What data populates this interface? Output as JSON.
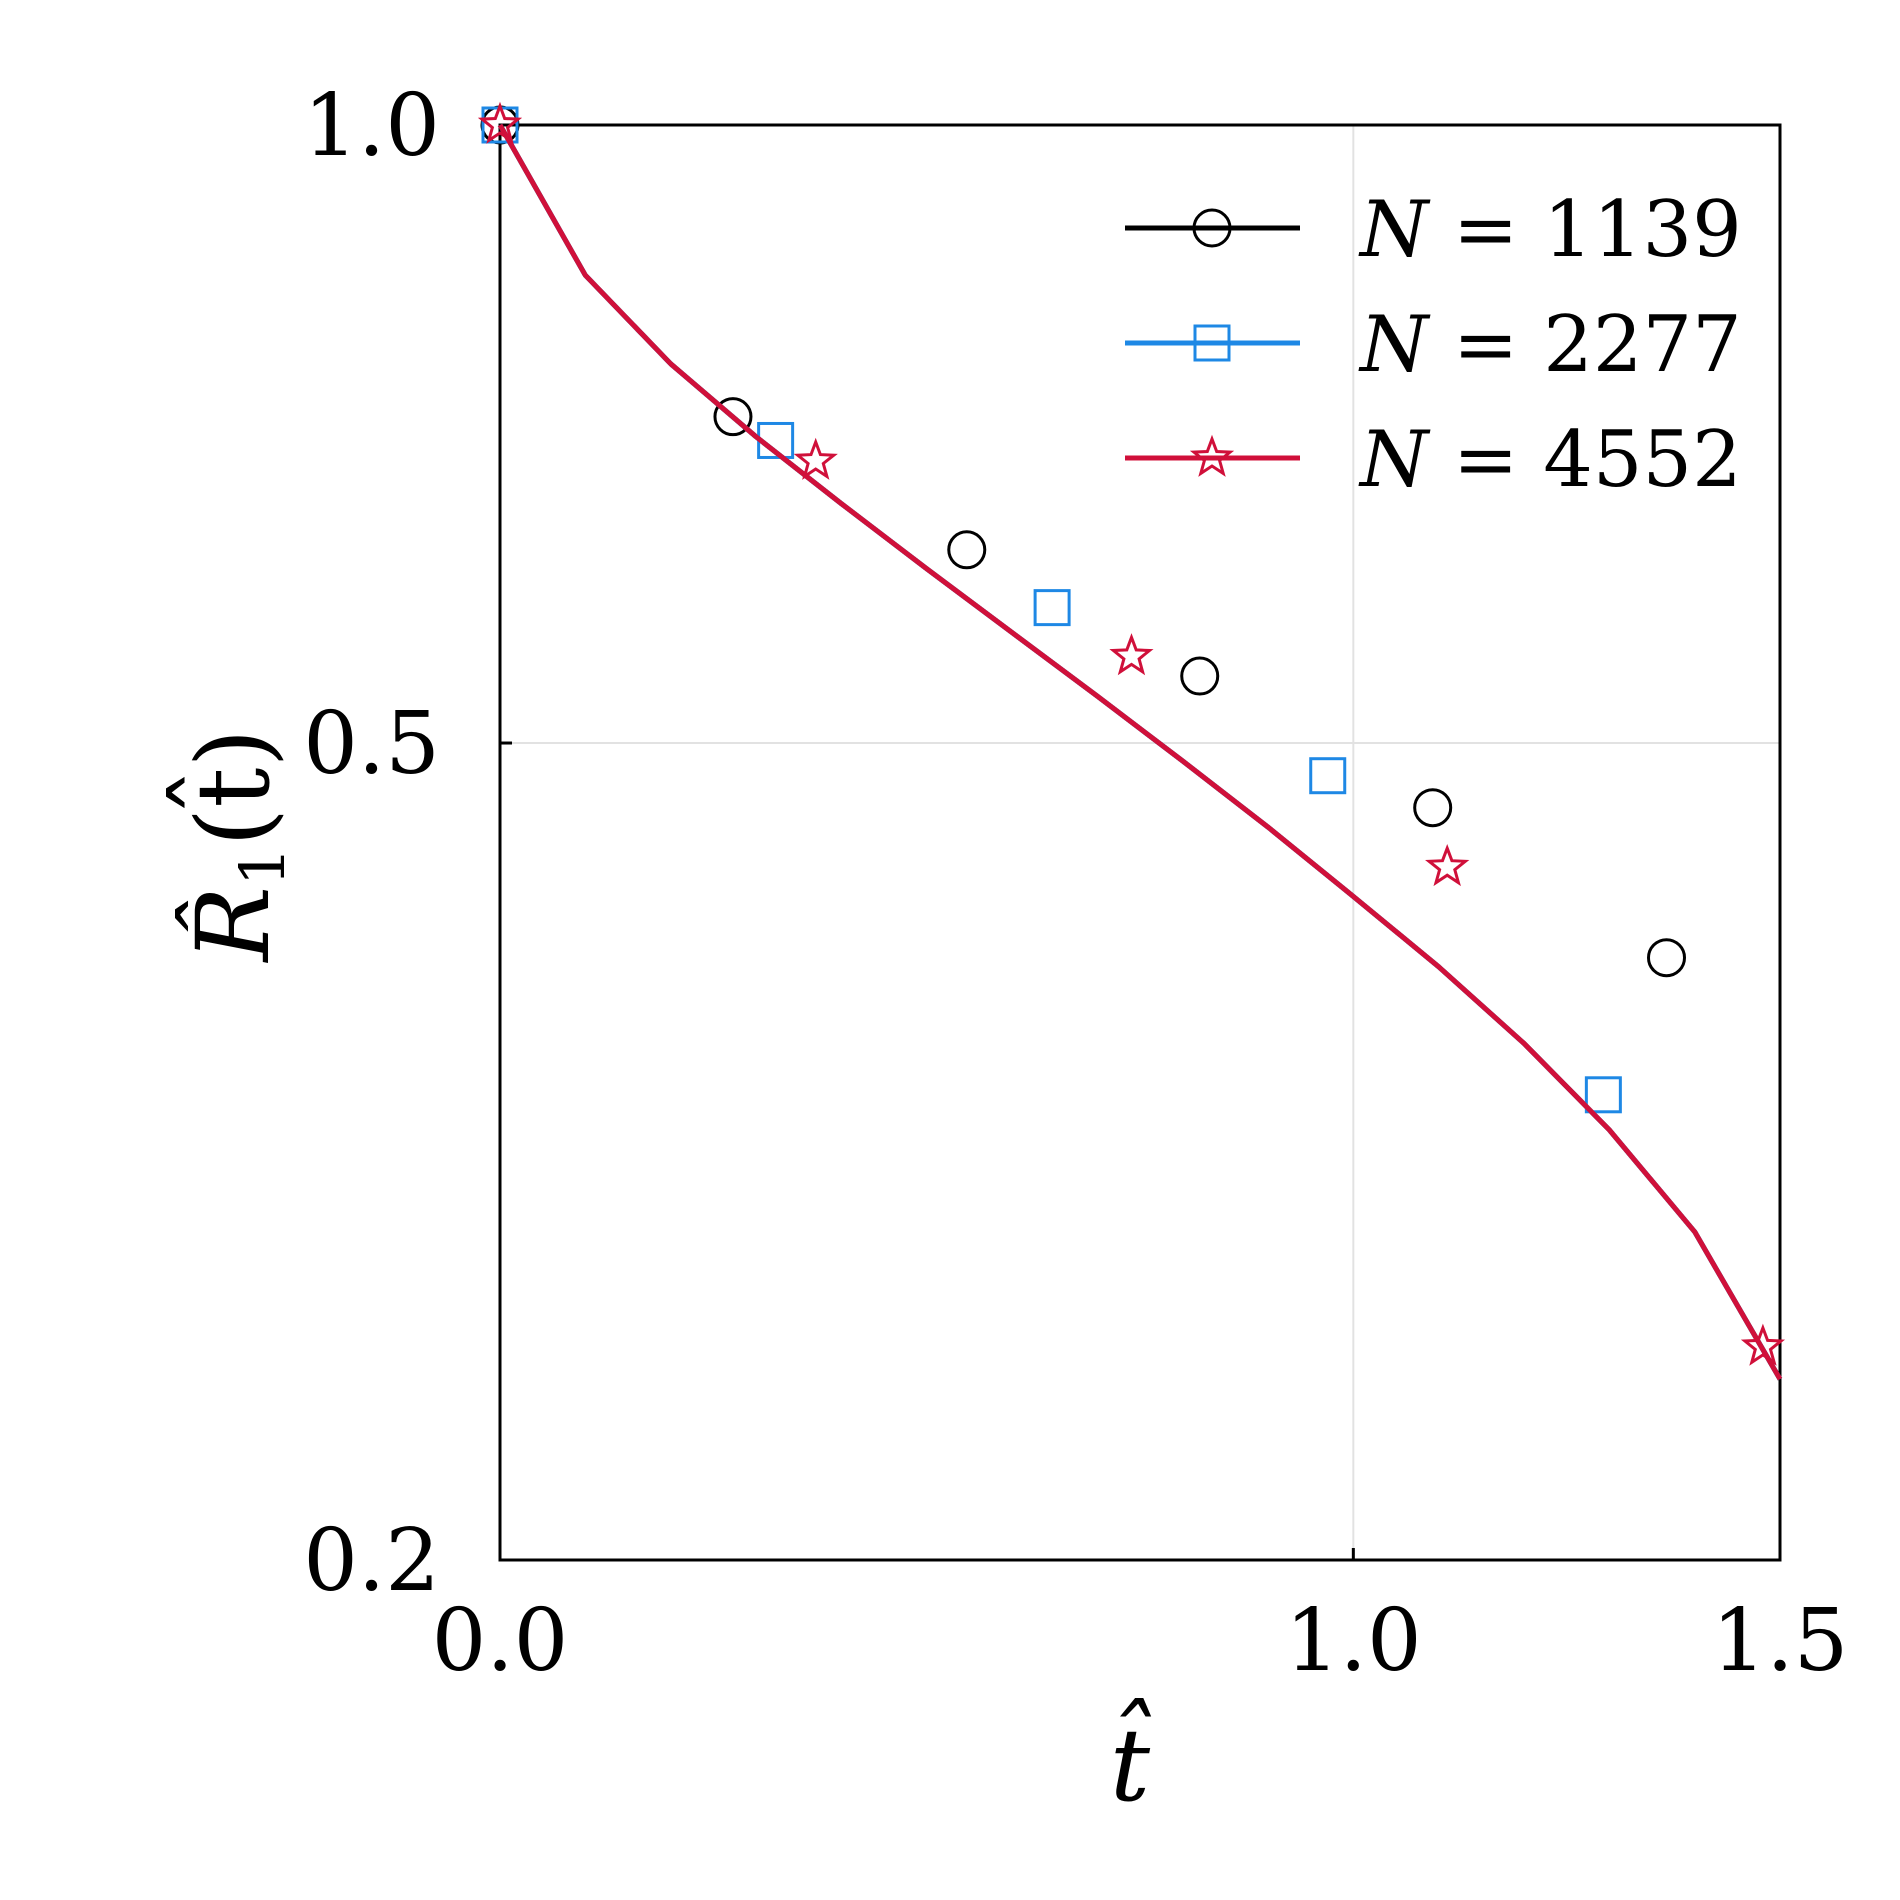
{
  "chart_data": {
    "type": "line",
    "xlabel": "t̂",
    "ylabel_main": "R̂",
    "ylabel_sub": "1",
    "ylabel_arg": "(t̂)",
    "xlim": [
      0.0,
      1.5
    ],
    "ylim": [
      0.2,
      1.0
    ],
    "y_scale": "log",
    "x_ticks": [
      0.0,
      1.0,
      1.5
    ],
    "x_tick_labels": [
      "0.0",
      "1.0",
      "1.5"
    ],
    "y_ticks": [
      1.0,
      0.5,
      0.2
    ],
    "y_tick_labels": [
      "1.0",
      "0.5",
      "0.2"
    ],
    "grid": true,
    "legend_position": "top-right",
    "series": [
      {
        "name": "N = 1139",
        "label_lhs": "N",
        "label_rhs": "= 1139",
        "color": "#000000",
        "marker": "circle",
        "x": [
          0.0,
          0.1,
          0.2,
          0.3,
          0.4,
          0.5,
          0.6,
          0.7,
          0.8,
          0.9,
          1.0,
          1.1,
          1.2,
          1.3,
          1.4,
          1.5
        ],
        "y": [
          1.0,
          0.845,
          0.765,
          0.705,
          0.654,
          0.608,
          0.566,
          0.527,
          0.49,
          0.455,
          0.421,
          0.389,
          0.357,
          0.324,
          0.289,
          0.245
        ],
        "marker_x": [
          0.0,
          0.273,
          0.547,
          0.82,
          1.093,
          1.367
        ],
        "marker_y": [
          1.0,
          0.721,
          0.621,
          0.539,
          0.465,
          0.393
        ]
      },
      {
        "name": "N = 2277",
        "label_lhs": "N",
        "label_rhs": "= 2277",
        "color": "#1e88e5",
        "marker": "square",
        "x": [
          0.0,
          0.1,
          0.2,
          0.3,
          0.4,
          0.5,
          0.6,
          0.7,
          0.8,
          0.9,
          1.0,
          1.1,
          1.2,
          1.3,
          1.4,
          1.5
        ],
        "y": [
          1.0,
          0.845,
          0.765,
          0.705,
          0.654,
          0.608,
          0.566,
          0.527,
          0.49,
          0.455,
          0.421,
          0.389,
          0.357,
          0.324,
          0.289,
          0.245
        ],
        "marker_x": [
          0.0,
          0.323,
          0.647,
          0.97,
          1.293
        ],
        "marker_y": [
          1.0,
          0.702,
          0.582,
          0.482,
          0.337
        ]
      },
      {
        "name": "N = 4552",
        "label_lhs": "N",
        "label_rhs": "= 4552",
        "color": "#d0103a",
        "marker": "star",
        "x": [
          0.0,
          0.1,
          0.2,
          0.3,
          0.4,
          0.5,
          0.6,
          0.7,
          0.8,
          0.9,
          1.0,
          1.1,
          1.2,
          1.3,
          1.4,
          1.5
        ],
        "y": [
          1.0,
          0.845,
          0.765,
          0.705,
          0.654,
          0.608,
          0.566,
          0.527,
          0.49,
          0.455,
          0.421,
          0.389,
          0.357,
          0.324,
          0.289,
          0.245
        ],
        "marker_x": [
          0.0,
          0.37,
          0.74,
          1.11,
          1.48
        ],
        "marker_y": [
          1.0,
          0.686,
          0.551,
          0.435,
          0.254
        ]
      }
    ]
  }
}
